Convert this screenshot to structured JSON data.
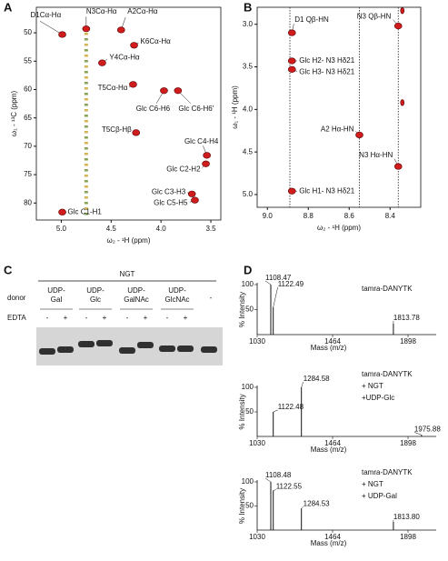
{
  "panel_labels": [
    "A",
    "B",
    "C",
    "D"
  ],
  "chart_data": [
    {
      "type": "nmr",
      "xlabel": "ω₂ - ¹H (ppm)",
      "ylabel": "ω₁ - ¹³C (ppm)",
      "xlim": [
        5.25,
        3.4
      ],
      "ylim": [
        83,
        45.5
      ],
      "xticks": [
        {
          "value": 5,
          "label": "5.0"
        },
        4.5,
        {
          "value": 4,
          "label": "4.0"
        },
        3.5
      ],
      "yticks": [
        50,
        55,
        60,
        65,
        70,
        75,
        80
      ],
      "color": "#d01c1c",
      "peaks": [
        {
          "label": "D1Cα-Hα",
          "x": 4.99,
          "y": 50.3,
          "label_color": "#111111"
        },
        {
          "label": "N3Cα-Hα",
          "x": 4.75,
          "y": 49.3,
          "label_color": "#111111"
        },
        {
          "label": "A2Cα-Hα",
          "x": 4.4,
          "y": 49.5,
          "label_color": "#111111"
        },
        {
          "label": "K6Cα-Hα",
          "x": 4.27,
          "y": 52.2,
          "label_color": "#111111"
        },
        {
          "label": "Y4Cα-Hα",
          "x": 4.59,
          "y": 55.3,
          "label_color": "#111111"
        },
        {
          "label": "T5Cα-Hα",
          "x": 4.28,
          "y": 59.1,
          "label_color": "#111111"
        },
        {
          "label": "Glc C6-H6",
          "x": 3.97,
          "y": 60.2,
          "label_color": "#7a3a9a"
        },
        {
          "label": "Glc C6-H6'",
          "x": 3.83,
          "y": 60.2,
          "label_color": "#7a3a9a"
        },
        {
          "label": "T5Cβ-Hβ",
          "x": 4.25,
          "y": 67.6,
          "label_color": "#111111"
        },
        {
          "label": "Glc C4-H4",
          "x": 3.54,
          "y": 71.6,
          "label_color": "#7a3a9a"
        },
        {
          "label": "Glc C2-H2",
          "x": 3.55,
          "y": 73.1,
          "label_color": "#7a3a9a"
        },
        {
          "label": "Glc C3-H3",
          "x": 3.69,
          "y": 78.4,
          "label_color": "#7a3a9a"
        },
        {
          "label": "Glc C5-H5",
          "x": 3.66,
          "y": 79.5,
          "label_color": "#7a3a9a"
        },
        {
          "label": "Glc C1-H1",
          "x": 4.99,
          "y": 81.6,
          "label_color": "#7a3a9a"
        }
      ]
    },
    {
      "type": "nmr",
      "xlabel": "ω₂ - ¹H (ppm)",
      "ylabel": "ω₁ - ¹H (ppm)",
      "xlim": [
        9.05,
        8.25
      ],
      "ylim": [
        5.15,
        2.8
      ],
      "xticks": [
        {
          "value": 9,
          "label": "9.0"
        },
        8.8,
        8.6,
        8.4
      ],
      "yticks": [
        {
          "value": 3,
          "label": "3.0"
        },
        3.5,
        {
          "value": 4,
          "label": "4.0"
        },
        4.5,
        {
          "value": 5,
          "label": "5.0"
        }
      ],
      "guide_lines": [
        8.89,
        8.55,
        8.36
      ],
      "color": "#d01c1c",
      "peaks": [
        {
          "label": "D1 Qβ-HN",
          "x": 8.88,
          "y": 3.1,
          "label_color": "#111111"
        },
        {
          "label": "Glc H2- N3 Hδ21",
          "x": 8.88,
          "y": 3.43,
          "label_color": "#7a3a9a"
        },
        {
          "label": "Glc H3- N3 Hδ21",
          "x": 8.88,
          "y": 3.53,
          "label_color": "#7a3a9a"
        },
        {
          "label": "A2 Hα-HN",
          "x": 8.55,
          "y": 4.3,
          "label_color": "#111111"
        },
        {
          "label": "N3 Hα-HN",
          "x": 8.36,
          "y": 4.67,
          "label_color": "#111111"
        },
        {
          "label": "Glc H1- N3 Hδ21",
          "x": 8.88,
          "y": 4.96,
          "label_color": "#7a3a9a"
        },
        {
          "label": "N3 Qβ-HN",
          "x": 8.36,
          "y": 3.02,
          "label_color": "#111111"
        },
        {
          "label": null,
          "x": 8.34,
          "y": 2.84,
          "label_color": "#111111"
        },
        {
          "label": null,
          "x": 8.34,
          "y": 3.92,
          "label_color": "#111111"
        }
      ]
    },
    {
      "type": "stick",
      "title": [
        "tamra-DANYTK"
      ],
      "xlabel": "Mass (m/z)",
      "ylabel": "% Intensity",
      "xlim": [
        1030,
        2060
      ],
      "ylim": [
        0,
        100
      ],
      "xticks": [
        1030,
        1464,
        1898
      ],
      "yticks": [
        50,
        100
      ],
      "x": [
        1108.47,
        1122.49,
        1813.78
      ],
      "values": [
        100,
        55,
        22
      ],
      "value_labels": [
        "1108.47",
        "1122.49",
        "1813.78"
      ]
    },
    {
      "type": "stick",
      "title": [
        "tamra-DANYTK",
        "+ NGT",
        "+UDP-Glc"
      ],
      "xlabel": "Mass (m/z)",
      "ylabel": "% Intensity",
      "xlim": [
        1030,
        2060
      ],
      "ylim": [
        0,
        100
      ],
      "xticks": [
        1030,
        1464,
        1898
      ],
      "yticks": [
        50,
        100
      ],
      "x": [
        1122.48,
        1284.58,
        1975.88
      ],
      "values": [
        50,
        100,
        3
      ],
      "value_labels": [
        "1122.48",
        "1284.58",
        "1975.88"
      ]
    },
    {
      "type": "stick",
      "title": [
        "tamra-DANYTK",
        "+ NGT",
        "+ UDP-Gal"
      ],
      "xlabel": "Mass (m/z)",
      "ylabel": "% Intensity",
      "xlim": [
        1030,
        2060
      ],
      "ylim": [
        0,
        100
      ],
      "xticks": [
        1030,
        1464,
        1898
      ],
      "yticks": [
        50,
        100
      ],
      "x": [
        1108.48,
        1122.55,
        1284.53,
        1813.8
      ],
      "values": [
        100,
        82,
        45,
        17
      ],
      "value_labels": [
        "1108.48",
        "1122.55",
        "1284.53",
        "1813.80"
      ]
    }
  ],
  "gel": {
    "enzyme": "NGT",
    "donor_label": "donor",
    "edta_label": "EDTA",
    "donors": [
      [
        "UDP-",
        "Gal"
      ],
      [
        "UDP-",
        "Glc"
      ],
      [
        "UDP-",
        "GalNAc"
      ],
      [
        "UDP-",
        "GlcNAc"
      ],
      [
        "-"
      ]
    ],
    "edta": [
      "-",
      "+",
      "-",
      "+",
      "-",
      "+",
      "-",
      "+"
    ]
  }
}
